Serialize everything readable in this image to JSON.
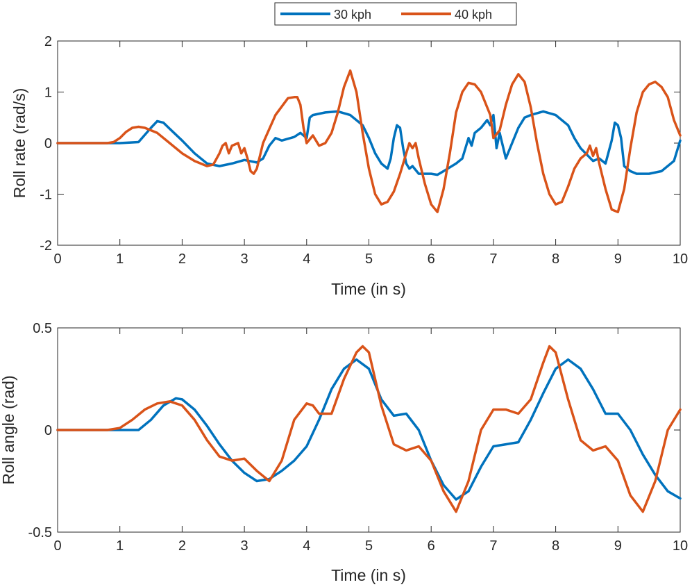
{
  "legend": {
    "entries": [
      {
        "label": "30 kph",
        "color": "#0072BD"
      },
      {
        "label": "40 kph",
        "color": "#D95319"
      }
    ]
  },
  "chart_data": [
    {
      "type": "line",
      "title": "",
      "xlabel": "Time (in s)",
      "ylabel": "Roll rate (rad/s)",
      "xlim": [
        0,
        10
      ],
      "ylim": [
        -2,
        2
      ],
      "xticks": [
        0,
        1,
        2,
        3,
        4,
        5,
        6,
        7,
        8,
        9,
        10
      ],
      "xtick_labels": [
        "0",
        "1",
        "2",
        "3",
        "4",
        "5",
        "6",
        "7",
        "8",
        "9",
        "10"
      ],
      "yticks": [
        -2,
        -1,
        0,
        1,
        2
      ],
      "ytick_labels": [
        "-2",
        "-1",
        "0",
        "1",
        "2"
      ],
      "grid": false,
      "series": [
        {
          "name": "30 kph",
          "color": "#0072BD",
          "x": [
            0,
            0.5,
            1.0,
            1.3,
            1.5,
            1.6,
            1.7,
            1.8,
            2.0,
            2.2,
            2.4,
            2.6,
            2.8,
            3.0,
            3.2,
            3.3,
            3.4,
            3.5,
            3.6,
            3.8,
            3.9,
            4.0,
            4.05,
            4.1,
            4.3,
            4.5,
            4.7,
            4.9,
            5.0,
            5.1,
            5.2,
            5.3,
            5.35,
            5.4,
            5.45,
            5.5,
            5.55,
            5.6,
            5.65,
            5.7,
            5.8,
            6.0,
            6.1,
            6.2,
            6.4,
            6.5,
            6.6,
            6.65,
            6.7,
            6.8,
            6.9,
            6.95,
            7.0,
            7.05,
            7.1,
            7.2,
            7.3,
            7.4,
            7.5,
            7.6,
            7.8,
            8.0,
            8.2,
            8.3,
            8.4,
            8.6,
            8.7,
            8.8,
            8.9,
            8.95,
            9.0,
            9.05,
            9.1,
            9.2,
            9.3,
            9.5,
            9.7,
            9.9,
            10.0
          ],
          "y": [
            0,
            0,
            0,
            0.02,
            0.3,
            0.43,
            0.4,
            0.28,
            0.05,
            -0.2,
            -0.4,
            -0.45,
            -0.4,
            -0.33,
            -0.38,
            -0.3,
            -0.05,
            0.1,
            0.05,
            0.12,
            0.2,
            0.1,
            0.5,
            0.55,
            0.6,
            0.62,
            0.55,
            0.35,
            0.1,
            -0.2,
            -0.4,
            -0.5,
            -0.3,
            0.1,
            0.35,
            0.3,
            -0.1,
            -0.4,
            -0.5,
            -0.45,
            -0.6,
            -0.6,
            -0.62,
            -0.55,
            -0.4,
            -0.3,
            0.1,
            -0.05,
            0.2,
            0.3,
            0.45,
            0.35,
            0.55,
            -0.1,
            0.2,
            -0.3,
            0.0,
            0.3,
            0.5,
            0.55,
            0.62,
            0.55,
            0.35,
            0.1,
            -0.1,
            -0.35,
            -0.3,
            -0.4,
            0.05,
            0.4,
            0.35,
            0.1,
            -0.45,
            -0.55,
            -0.6,
            -0.6,
            -0.55,
            -0.35,
            0.05
          ]
        },
        {
          "name": "40 kph",
          "color": "#D95319",
          "x": [
            0,
            0.5,
            0.8,
            0.9,
            1.0,
            1.1,
            1.2,
            1.3,
            1.4,
            1.6,
            1.8,
            2.0,
            2.2,
            2.4,
            2.5,
            2.6,
            2.65,
            2.7,
            2.75,
            2.8,
            2.9,
            2.95,
            3.0,
            3.05,
            3.1,
            3.15,
            3.2,
            3.3,
            3.5,
            3.7,
            3.8,
            3.85,
            3.9,
            3.95,
            4.0,
            4.1,
            4.2,
            4.3,
            4.4,
            4.5,
            4.6,
            4.7,
            4.8,
            4.9,
            5.0,
            5.1,
            5.2,
            5.3,
            5.4,
            5.5,
            5.6,
            5.65,
            5.7,
            5.75,
            5.8,
            5.9,
            6.0,
            6.1,
            6.2,
            6.3,
            6.4,
            6.5,
            6.6,
            6.7,
            6.8,
            6.9,
            6.95,
            7.0,
            7.1,
            7.2,
            7.3,
            7.4,
            7.5,
            7.6,
            7.7,
            7.8,
            7.9,
            8.0,
            8.1,
            8.2,
            8.3,
            8.4,
            8.5,
            8.55,
            8.6,
            8.65,
            8.7,
            8.8,
            8.9,
            9.0,
            9.1,
            9.2,
            9.3,
            9.4,
            9.5,
            9.6,
            9.7,
            9.8,
            9.9,
            10.0
          ],
          "y": [
            0,
            0,
            0,
            0.02,
            0.1,
            0.22,
            0.3,
            0.32,
            0.3,
            0.2,
            0.0,
            -0.2,
            -0.35,
            -0.45,
            -0.42,
            -0.2,
            -0.05,
            0.0,
            -0.2,
            -0.05,
            0.0,
            -0.2,
            -0.1,
            -0.3,
            -0.55,
            -0.6,
            -0.5,
            0.0,
            0.55,
            0.88,
            0.9,
            0.9,
            0.75,
            0.3,
            0.0,
            0.15,
            -0.05,
            0.0,
            0.2,
            0.6,
            1.1,
            1.42,
            1.0,
            0.2,
            -0.5,
            -1.0,
            -1.2,
            -1.15,
            -0.95,
            -0.6,
            -0.2,
            0.0,
            -0.1,
            0.0,
            -0.3,
            -0.8,
            -1.2,
            -1.35,
            -0.9,
            -0.2,
            0.6,
            1.0,
            1.18,
            1.15,
            1.0,
            0.7,
            0.55,
            0.1,
            0.25,
            0.75,
            1.15,
            1.35,
            1.2,
            0.7,
            0.0,
            -0.6,
            -1.0,
            -1.2,
            -1.15,
            -0.85,
            -0.5,
            -0.3,
            -0.2,
            -0.05,
            -0.25,
            -0.1,
            -0.4,
            -0.9,
            -1.3,
            -1.35,
            -0.9,
            -0.1,
            0.6,
            1.0,
            1.15,
            1.2,
            1.1,
            0.9,
            0.45,
            0.15
          ]
        }
      ]
    },
    {
      "type": "line",
      "title": "",
      "xlabel": "Time (in s)",
      "ylabel": "Roll angle (rad)",
      "xlim": [
        0,
        10
      ],
      "ylim": [
        -0.5,
        0.5
      ],
      "xticks": [
        0,
        1,
        2,
        3,
        4,
        5,
        6,
        7,
        8,
        9,
        10
      ],
      "xtick_labels": [
        "0",
        "1",
        "2",
        "3",
        "4",
        "5",
        "6",
        "7",
        "8",
        "9",
        "10"
      ],
      "yticks": [
        -0.5,
        0,
        0.5
      ],
      "ytick_labels": [
        "-0.5",
        "0",
        "0.5"
      ],
      "grid": false,
      "series": [
        {
          "name": "30 kph",
          "color": "#0072BD",
          "x": [
            0,
            0.5,
            1.0,
            1.3,
            1.5,
            1.7,
            1.9,
            2.0,
            2.2,
            2.4,
            2.6,
            2.8,
            3.0,
            3.2,
            3.4,
            3.6,
            3.8,
            4.0,
            4.2,
            4.4,
            4.6,
            4.8,
            5.0,
            5.2,
            5.4,
            5.6,
            5.8,
            6.0,
            6.2,
            6.4,
            6.6,
            6.8,
            7.0,
            7.2,
            7.4,
            7.6,
            7.8,
            8.0,
            8.2,
            8.4,
            8.6,
            8.8,
            9.0,
            9.2,
            9.4,
            9.6,
            9.8,
            10.0
          ],
          "y": [
            0,
            0,
            0,
            0.0,
            0.05,
            0.12,
            0.155,
            0.15,
            0.1,
            0.02,
            -0.07,
            -0.15,
            -0.21,
            -0.25,
            -0.24,
            -0.2,
            -0.15,
            -0.08,
            0.05,
            0.2,
            0.3,
            0.345,
            0.3,
            0.15,
            0.07,
            0.08,
            0.0,
            -0.15,
            -0.27,
            -0.34,
            -0.3,
            -0.18,
            -0.08,
            -0.07,
            -0.06,
            0.05,
            0.18,
            0.3,
            0.345,
            0.3,
            0.2,
            0.08,
            0.08,
            0.0,
            -0.12,
            -0.22,
            -0.3,
            -0.335
          ]
        },
        {
          "name": "40 kph",
          "color": "#D95319",
          "x": [
            0,
            0.5,
            0.8,
            1.0,
            1.2,
            1.4,
            1.6,
            1.8,
            2.0,
            2.2,
            2.4,
            2.6,
            2.8,
            3.0,
            3.2,
            3.4,
            3.6,
            3.8,
            4.0,
            4.1,
            4.2,
            4.4,
            4.6,
            4.8,
            4.9,
            5.0,
            5.2,
            5.4,
            5.6,
            5.8,
            6.0,
            6.2,
            6.4,
            6.6,
            6.8,
            7.0,
            7.2,
            7.4,
            7.6,
            7.8,
            7.9,
            8.0,
            8.2,
            8.4,
            8.6,
            8.8,
            9.0,
            9.2,
            9.4,
            9.6,
            9.8,
            10.0
          ],
          "y": [
            0,
            0,
            0,
            0.01,
            0.05,
            0.1,
            0.13,
            0.14,
            0.12,
            0.05,
            -0.05,
            -0.13,
            -0.15,
            -0.14,
            -0.2,
            -0.25,
            -0.15,
            0.05,
            0.13,
            0.12,
            0.08,
            0.08,
            0.25,
            0.38,
            0.41,
            0.38,
            0.12,
            -0.07,
            -0.1,
            -0.08,
            -0.15,
            -0.3,
            -0.4,
            -0.25,
            0.0,
            0.1,
            0.1,
            0.08,
            0.15,
            0.33,
            0.41,
            0.38,
            0.15,
            -0.05,
            -0.1,
            -0.08,
            -0.15,
            -0.32,
            -0.4,
            -0.25,
            0.0,
            0.1
          ]
        }
      ]
    }
  ]
}
